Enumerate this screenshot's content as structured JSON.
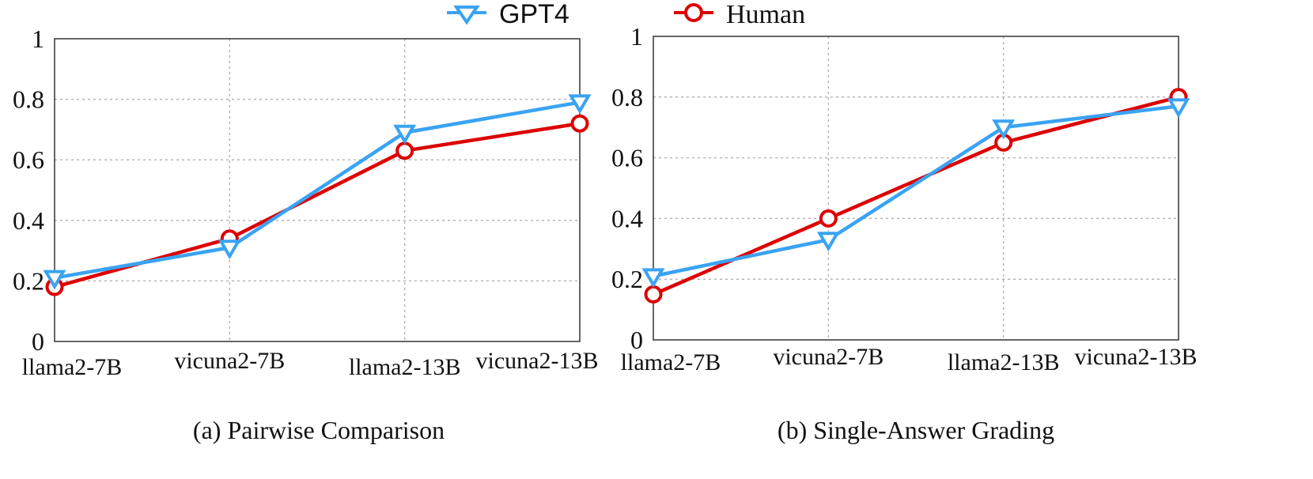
{
  "legend": {
    "entries": [
      {
        "label": "GPT4",
        "color": "#3aa3f3",
        "marker": "triangle-down"
      },
      {
        "label": "Human",
        "color": "#dd0000",
        "marker": "circle"
      }
    ],
    "placement": "top-center"
  },
  "chart_data": [
    {
      "type": "line",
      "title": "(a) Pairwise Comparison",
      "categories": [
        "llama2-7B",
        "vicuna2-7B",
        "llama2-13B",
        "vicuna2-13B"
      ],
      "ylim": [
        0,
        1
      ],
      "yticks": [
        "0",
        "0.2",
        "0.4",
        "0.6",
        "0.8",
        "1"
      ],
      "grid": true,
      "series": [
        {
          "name": "GPT4",
          "values": [
            0.21,
            0.31,
            0.69,
            0.79
          ]
        },
        {
          "name": "Human",
          "values": [
            0.18,
            0.34,
            0.63,
            0.72
          ]
        }
      ]
    },
    {
      "type": "line",
      "title": "(b) Single-Answer Grading",
      "categories": [
        "llama2-7B",
        "vicuna2-7B",
        "llama2-13B",
        "vicuna2-13B"
      ],
      "ylim": [
        0,
        1
      ],
      "yticks": [
        "0",
        "0.2",
        "0.4",
        "0.6",
        "0.8",
        "1"
      ],
      "grid": true,
      "series": [
        {
          "name": "GPT4",
          "values": [
            0.21,
            0.33,
            0.7,
            0.77
          ]
        },
        {
          "name": "Human",
          "values": [
            0.15,
            0.4,
            0.65,
            0.8
          ]
        }
      ]
    }
  ]
}
